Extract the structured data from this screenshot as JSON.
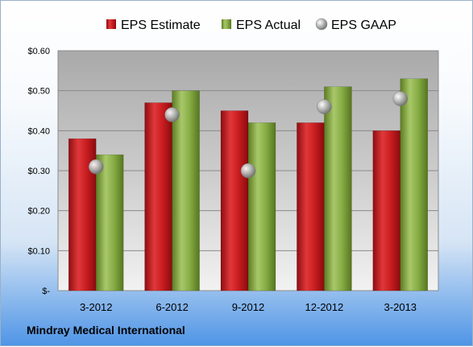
{
  "company_label": "Mindray Medical International",
  "chart_data": {
    "type": "bar",
    "title": "",
    "xlabel": "",
    "ylabel": "",
    "categories": [
      "3-2012",
      "6-2012",
      "9-2012",
      "12-2012",
      "3-2013"
    ],
    "series": [
      {
        "name": "EPS Estimate",
        "kind": "bar",
        "color": "#c0181c",
        "values": [
          0.38,
          0.47,
          0.45,
          0.42,
          0.4
        ]
      },
      {
        "name": "EPS Actual",
        "kind": "bar",
        "color": "#7ea33a",
        "values": [
          0.34,
          0.5,
          0.42,
          0.51,
          0.53
        ]
      },
      {
        "name": "EPS GAAP",
        "kind": "marker",
        "color": "#a8a8a8",
        "values": [
          0.31,
          0.44,
          0.3,
          0.46,
          0.48
        ]
      }
    ],
    "ylim": [
      0,
      0.6
    ],
    "yticks": [
      0,
      0.1,
      0.2,
      0.3,
      0.4,
      0.5,
      0.6
    ],
    "ytick_labels": [
      "$-",
      "$0.10",
      "$0.20",
      "$0.30",
      "$0.40",
      "$0.50",
      "$0.60"
    ],
    "grid": true,
    "legend_position": "top"
  }
}
